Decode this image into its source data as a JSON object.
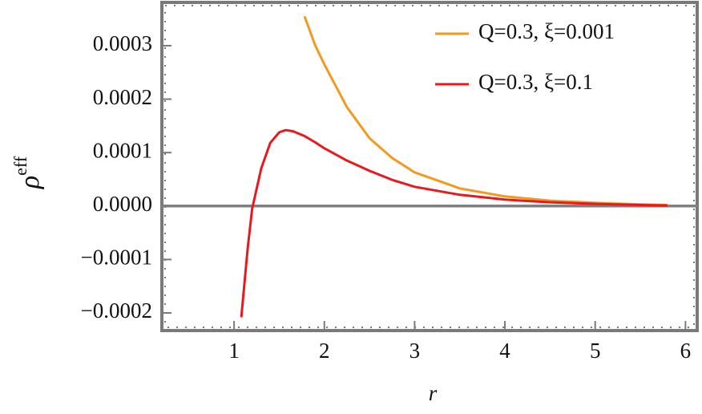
{
  "chart_data": {
    "type": "line",
    "x_label": "r",
    "y_label": {
      "base": "ρ",
      "superscript": "eff"
    },
    "x": [
      1.08,
      1.15,
      1.2,
      1.3,
      1.4,
      1.5,
      1.57,
      1.65,
      1.78,
      1.9,
      2,
      2.25,
      2.5,
      2.75,
      3,
      3.5,
      4,
      4.5,
      5,
      5.5,
      5.8
    ],
    "series": [
      {
        "name": "Q=0.3, ξ=0.001",
        "color": "#f39a1e",
        "values": [
          null,
          null,
          null,
          null,
          null,
          null,
          null,
          null,
          0.000355,
          0.0003,
          0.000265,
          0.000185,
          0.000127,
          9e-05,
          6.3e-05,
          3.3e-05,
          1.8e-05,
          1e-05,
          6e-06,
          3e-06,
          2e-06
        ]
      },
      {
        "name": "Q=0.3, ξ=0.1",
        "color": "#e8191e",
        "values": [
          -0.000208,
          -8e-05,
          -5e-06,
          7e-05,
          0.000118,
          0.000138,
          0.000142,
          0.00014,
          0.000131,
          0.000119,
          0.000108,
          8.5e-05,
          6.6e-05,
          4.9e-05,
          3.6e-05,
          2.1e-05,
          1.2e-05,
          7e-06,
          4e-06,
          2e-06,
          1e-06
        ]
      }
    ],
    "xlim": [
      0.2,
      6.13
    ],
    "ylim": [
      -0.000233,
      0.000381
    ],
    "xticks": [
      1,
      2,
      3,
      4,
      5,
      6
    ],
    "yticks": [
      {
        "value": 0.0003,
        "label": "0.0003"
      },
      {
        "value": 0.0002,
        "label": "0.0002"
      },
      {
        "value": 0.0001,
        "label": "0.0001"
      },
      {
        "value": 0,
        "label": "0.0000"
      },
      {
        "value": -0.0001,
        "label": "−0.0001"
      },
      {
        "value": -0.0002,
        "label": "−0.0002"
      }
    ],
    "legend": "top-right"
  }
}
